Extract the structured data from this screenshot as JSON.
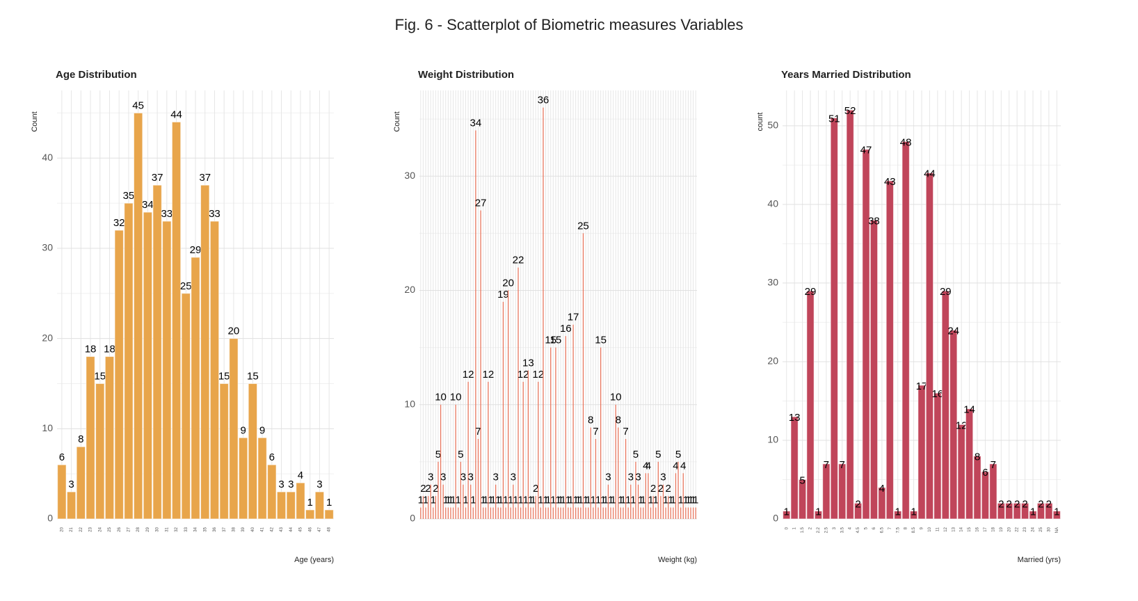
{
  "title": "Fig. 6 - Scatterplot of Biometric measures Variables",
  "chart_data": [
    {
      "type": "bar",
      "title": "Age Distribution",
      "x_label": "Age (years)",
      "y_label": "Count",
      "color": "#e8a54b",
      "label_position": "above",
      "categories": [
        "20",
        "21",
        "22",
        "23",
        "24",
        "25",
        "26",
        "27",
        "28",
        "29",
        "30",
        "31",
        "32",
        "33",
        "34",
        "35",
        "36",
        "37",
        "38",
        "39",
        "40",
        "41",
        "42",
        "43",
        "44",
        "45",
        "46",
        "47",
        "48"
      ],
      "values": [
        6,
        3,
        8,
        18,
        15,
        18,
        32,
        35,
        45,
        34,
        37,
        33,
        44,
        25,
        29,
        37,
        33,
        15,
        20,
        9,
        15,
        9,
        6,
        3,
        3,
        4,
        1,
        3,
        1
      ],
      "ylim": [
        0,
        47.5
      ],
      "yticks": [
        0,
        10,
        20,
        30,
        40
      ],
      "grid": true
    },
    {
      "type": "bar",
      "title": "Weight Distribution",
      "x_label": "Weight (kg)",
      "y_label": "Count",
      "color": "#e8735a",
      "label_position": "above",
      "bar_width": 0.35,
      "categories": [
        null,
        null,
        null,
        null,
        null,
        null,
        null,
        null,
        null,
        null,
        null,
        null,
        null,
        null,
        null,
        null,
        null,
        null,
        null,
        null,
        null,
        null,
        null,
        null,
        null,
        null,
        null,
        null,
        null,
        null,
        null,
        null,
        null,
        null,
        null,
        null,
        null,
        null,
        null,
        null,
        null,
        null,
        null,
        null,
        null,
        null,
        null,
        null,
        null,
        null,
        null,
        null,
        null,
        null,
        null,
        null,
        null,
        null,
        null,
        null,
        null,
        null,
        null,
        null,
        null,
        null,
        null,
        null,
        null,
        null,
        null,
        null,
        null,
        null,
        null,
        null,
        null,
        null,
        null,
        null,
        null,
        null,
        null,
        null,
        null,
        null,
        null,
        null,
        null,
        null,
        null,
        null,
        null,
        null,
        null,
        null,
        null,
        null,
        null,
        null,
        null,
        null,
        null,
        null,
        null,
        null,
        null,
        null,
        null,
        null,
        null
      ],
      "values": [
        1,
        2,
        1,
        2,
        3,
        1,
        2,
        5,
        10,
        3,
        1,
        1,
        1,
        1,
        10,
        1,
        5,
        3,
        1,
        12,
        3,
        1,
        34,
        7,
        27,
        1,
        1,
        12,
        1,
        1,
        3,
        1,
        1,
        19,
        1,
        20,
        1,
        3,
        1,
        22,
        1,
        12,
        1,
        13,
        1,
        1,
        2,
        12,
        1,
        36,
        1,
        1,
        15,
        1,
        15,
        1,
        1,
        1,
        16,
        1,
        1,
        17,
        1,
        1,
        1,
        25,
        1,
        1,
        8,
        1,
        7,
        1,
        15,
        1,
        1,
        3,
        1,
        1,
        10,
        8,
        1,
        1,
        7,
        1,
        3,
        1,
        5,
        3,
        1,
        1,
        4,
        4,
        1,
        2,
        1,
        5,
        2,
        3,
        1,
        2,
        1,
        1,
        4,
        5,
        1,
        4,
        1,
        1,
        1,
        1,
        1
      ],
      "ylim": [
        0,
        37.5
      ],
      "yticks": [
        0,
        10,
        20,
        30
      ],
      "grid": true
    },
    {
      "type": "bar",
      "title": "Years Married Distribution",
      "x_label": "Married (yrs)",
      "y_label": "count",
      "color": "#c0455a",
      "label_position": "top",
      "categories": [
        "0",
        "1",
        "1.5",
        "2",
        "2.2",
        "2.5",
        "3",
        "3.5",
        "4",
        "4.5",
        "5",
        "6",
        "6.5",
        "7",
        "7.5",
        "8",
        "8.5",
        "9",
        "10",
        "11",
        "12",
        "13",
        "14",
        "15",
        "16",
        "17",
        "18",
        "19",
        "20",
        "22",
        "23",
        "24",
        "25",
        "30",
        "NA"
      ],
      "values": [
        1,
        13,
        5,
        29,
        1,
        7,
        51,
        7,
        52,
        2,
        47,
        38,
        4,
        43,
        1,
        48,
        1,
        17,
        44,
        16,
        29,
        24,
        12,
        14,
        8,
        6,
        7,
        2,
        2,
        2,
        2,
        1,
        2,
        2,
        1
      ],
      "ylim": [
        0,
        54.5
      ],
      "yticks": [
        0,
        10,
        20,
        30,
        40,
        50
      ],
      "grid": true
    }
  ]
}
